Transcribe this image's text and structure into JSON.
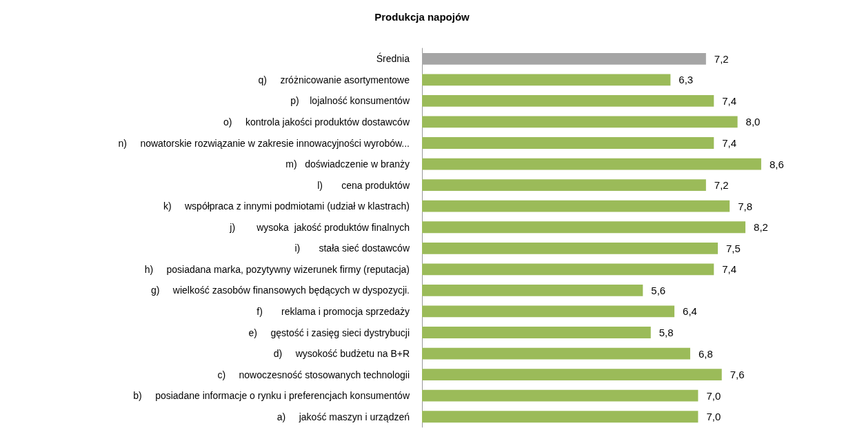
{
  "chart_data": {
    "type": "bar",
    "orientation": "horizontal",
    "title": "Produkcja napojów",
    "categories": [
      "Średnia",
      "q)     zróżnicowanie asortymentowe",
      "p)    lojalność konsumentów",
      "o)     kontrola jakości produktów dostawców",
      "n)     nowatorskie rozwiązanie w zakresie innowacyjności wyrobów...",
      "m)   doświadczenie w branży",
      "l)       cena produktów",
      "k)     współpraca z innymi podmiotami (udział w klastrach)",
      "j)        wysoka  jakość produktów finalnych",
      "i)       stała sieć dostawców",
      "h)     posiadana marka, pozytywny wizerunek firmy (reputacja)",
      "g)     wielkość zasobów finansowych będących w dyspozycji.",
      "f)       reklama i promocja sprzedaży",
      "e)     gęstość i zasięg sieci dystrybucji",
      "d)     wysokość budżetu na B+R",
      "c)     nowoczesność stosowanych technologii",
      "b)     posiadane informacje o rynku i preferencjach konsumentów",
      "a)     jakość maszyn i urządzeń"
    ],
    "values": [
      7.2,
      6.3,
      7.4,
      8.0,
      7.4,
      8.6,
      7.2,
      7.8,
      8.2,
      7.5,
      7.4,
      5.6,
      6.4,
      5.8,
      6.8,
      7.6,
      7.0,
      7.0
    ],
    "value_labels": [
      "7,2",
      "6,3",
      "7,4",
      "8,0",
      "7,4",
      "8,6",
      "7,2",
      "7,8",
      "8,2",
      "7,5",
      "7,4",
      "5,6",
      "6,4",
      "5,8",
      "6,8",
      "7,6",
      "7,0",
      "7,0"
    ],
    "colors": [
      "#a5a5a5",
      "#9bbb59",
      "#9bbb59",
      "#9bbb59",
      "#9bbb59",
      "#9bbb59",
      "#9bbb59",
      "#9bbb59",
      "#9bbb59",
      "#9bbb59",
      "#9bbb59",
      "#9bbb59",
      "#9bbb59",
      "#9bbb59",
      "#9bbb59",
      "#9bbb59",
      "#9bbb59",
      "#9bbb59"
    ],
    "data_labels": false
  }
}
